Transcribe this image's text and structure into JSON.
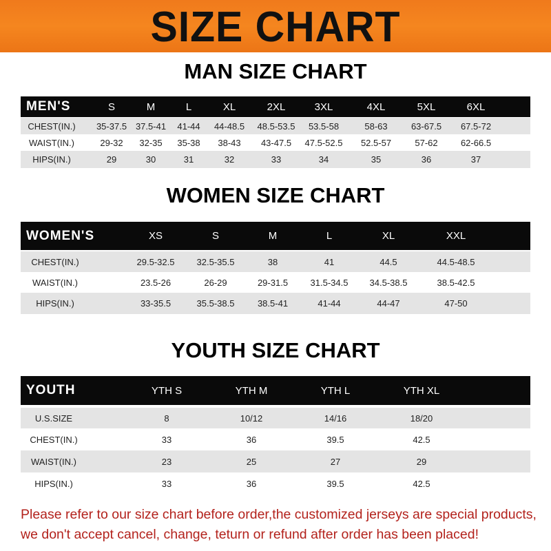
{
  "banner": {
    "title": "SIZE CHART",
    "color": "#f5861f"
  },
  "men": {
    "title": "MAN SIZE CHART",
    "header": [
      "MEN'S",
      "S",
      "M",
      "L",
      "XL",
      "2XL",
      "3XL",
      "4XL",
      "5XL",
      "6XL"
    ],
    "rows": [
      [
        "CHEST(IN.)",
        "35-37.5",
        "37.5-41",
        "41-44",
        "44-48.5",
        "48.5-53.5",
        "53.5-58",
        "58-63",
        "63-67.5",
        "67.5-72"
      ],
      [
        "WAIST(IN.)",
        "29-32",
        "32-35",
        "35-38",
        "38-43",
        "43-47.5",
        "47.5-52.5",
        "52.5-57",
        "57-62",
        "62-66.5"
      ],
      [
        "HIPS(IN.)",
        "29",
        "30",
        "31",
        "32",
        "33",
        "34",
        "35",
        "36",
        "37"
      ]
    ]
  },
  "women": {
    "title": "WOMEN SIZE CHART",
    "header": [
      "WOMEN'S",
      "XS",
      "S",
      "M",
      "L",
      "XL",
      "XXL"
    ],
    "rows": [
      [
        "CHEST(IN.)",
        "29.5-32.5",
        "32.5-35.5",
        "38",
        "41",
        "44.5",
        "44.5-48.5"
      ],
      [
        "WAIST(IN.)",
        "23.5-26",
        "26-29",
        "29-31.5",
        "31.5-34.5",
        "34.5-38.5",
        "38.5-42.5"
      ],
      [
        "HIPS(IN.)",
        "33-35.5",
        "35.5-38.5",
        "38.5-41",
        "41-44",
        "44-47",
        "47-50"
      ]
    ]
  },
  "youth": {
    "title": "YOUTH SIZE CHART",
    "header": [
      "YOUTH",
      "YTH S",
      "YTH M",
      "YTH L",
      "YTH XL"
    ],
    "rows": [
      [
        "U.S.SIZE",
        "8",
        "10/12",
        "14/16",
        "18/20"
      ],
      [
        "CHEST(IN.)",
        "33",
        "36",
        "39.5",
        "42.5"
      ],
      [
        "WAIST(IN.)",
        "23",
        "25",
        "27",
        "29"
      ],
      [
        "HIPS(IN.)",
        "33",
        "36",
        "39.5",
        "42.5"
      ]
    ]
  },
  "notice": {
    "line1": "Please refer to our size chart before order,the customized jerseys are special products,",
    "line2": "we don't accept cancel, change, teturn or refund after order has been placed!",
    "color": "#b3221c"
  }
}
